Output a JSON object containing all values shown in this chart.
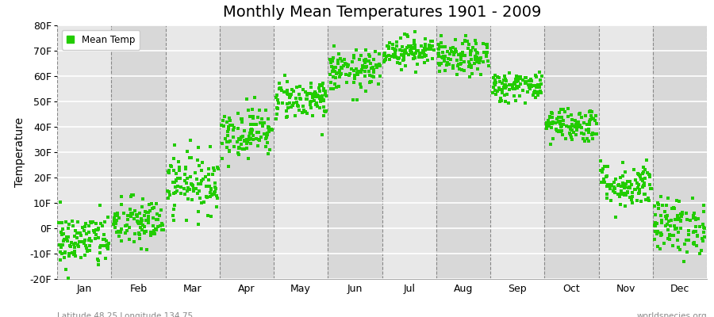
{
  "title": "Monthly Mean Temperatures 1901 - 2009",
  "ylabel": "Temperature",
  "subtitle_left": "Latitude 48.25 Longitude 134.75",
  "subtitle_right": "worldspecies.org",
  "legend_label": "Mean Temp",
  "ylim": [
    -20,
    80
  ],
  "yticks": [
    -20,
    -10,
    0,
    10,
    20,
    30,
    40,
    50,
    60,
    70,
    80
  ],
  "ytick_labels": [
    "-20F",
    "-10F",
    "0F",
    "10F",
    "20F",
    "30F",
    "40F",
    "50F",
    "60F",
    "70F",
    "80F"
  ],
  "month_names": [
    "Jan",
    "Feb",
    "Mar",
    "Apr",
    "May",
    "Jun",
    "Jul",
    "Aug",
    "Sep",
    "Oct",
    "Nov",
    "Dec"
  ],
  "dot_color": "#22cc00",
  "dot_size": 6,
  "background_color": "#ffffff",
  "plot_bg_even": "#e8e8e8",
  "plot_bg_odd": "#d8d8d8",
  "grid_color": "#ffffff",
  "vline_color": "#888888",
  "title_fontsize": 14,
  "axis_fontsize": 10,
  "tick_fontsize": 9,
  "month_means_F": [
    -5,
    2,
    18,
    38,
    51,
    62,
    70,
    67,
    56,
    41,
    17,
    1
  ],
  "month_stds_F": [
    5.5,
    5,
    6,
    5,
    4,
    4,
    3,
    3.5,
    3,
    3.5,
    4.5,
    5.5
  ],
  "n_years": 109,
  "seed": 42
}
